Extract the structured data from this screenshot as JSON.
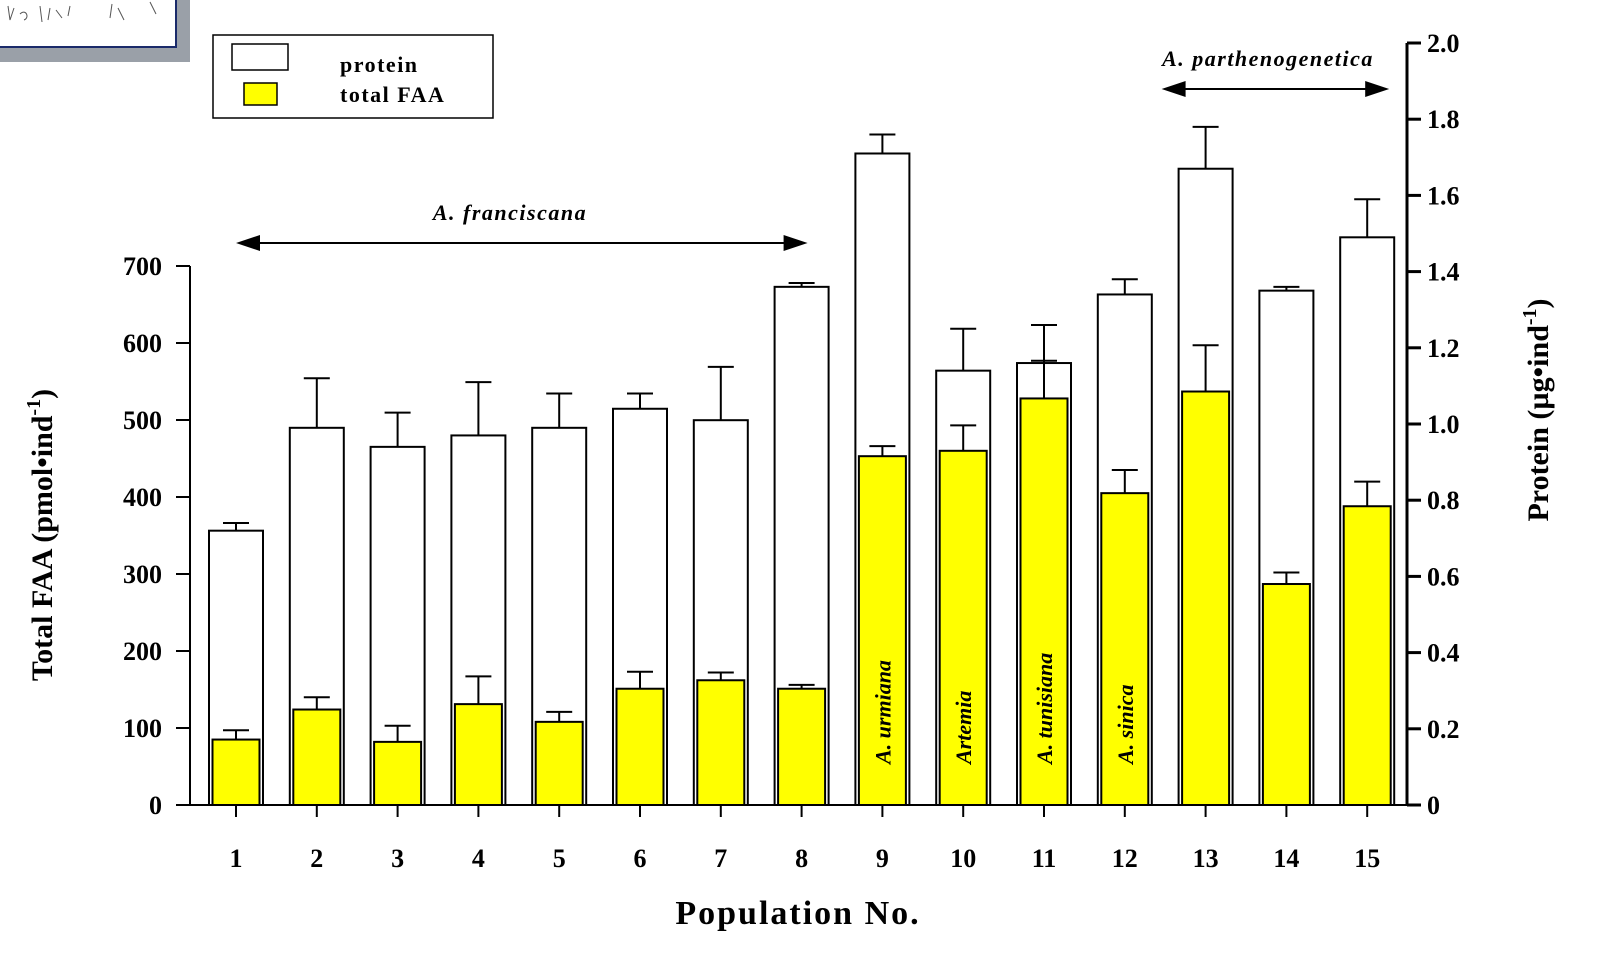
{
  "chart_data": {
    "type": "bar",
    "categories": [
      "1",
      "2",
      "3",
      "4",
      "5",
      "6",
      "7",
      "8",
      "9",
      "10",
      "11",
      "12",
      "13",
      "14",
      "15"
    ],
    "xlabel": "Population No.",
    "ylabel_left": "Total FAA (pmol•ind",
    "ylabel_left_exp": "-1",
    "ylabel_right": "Protein (µg•ind",
    "ylabel_right_exp": "-1",
    "ylim_left": [
      0,
      700
    ],
    "ylim_right": [
      0,
      2.0
    ],
    "left_ticks": [
      "0",
      "100",
      "200",
      "300",
      "400",
      "500",
      "600",
      "700"
    ],
    "right_ticks": [
      "0",
      "0.2",
      "0.4",
      "0.6",
      "0.8",
      "1.0",
      "1.2",
      "1.4",
      "1.6",
      "1.8",
      "2.0"
    ],
    "legend": {
      "position": "top-left",
      "items": [
        {
          "label": "protein",
          "color": "#ffffff"
        },
        {
          "label": "total FAA",
          "color": "#ffff00"
        }
      ]
    },
    "series": [
      {
        "name": "protein",
        "axis": "right",
        "color": "#ffffff",
        "values": [
          0.72,
          0.99,
          0.94,
          0.97,
          0.99,
          1.04,
          1.01,
          1.36,
          1.71,
          1.14,
          1.16,
          1.34,
          1.67,
          1.35,
          1.49
        ],
        "errors": [
          0.02,
          0.13,
          0.09,
          0.14,
          0.09,
          0.04,
          0.14,
          0.01,
          0.05,
          0.11,
          0.1,
          0.04,
          0.11,
          0.01,
          0.1
        ]
      },
      {
        "name": "total FAA",
        "axis": "left",
        "color": "#ffff00",
        "values": [
          85,
          124,
          82,
          131,
          108,
          151,
          162,
          151,
          453,
          460,
          528,
          405,
          537,
          287,
          388
        ],
        "errors": [
          12,
          16,
          21,
          36,
          13,
          22,
          10,
          5,
          13,
          33,
          49,
          30,
          60,
          15,
          32
        ]
      }
    ],
    "annotations": [
      {
        "text": "A. franciscana",
        "span": [
          "1",
          "8"
        ]
      },
      {
        "text": "A. parthenogenetica",
        "span": [
          "13",
          "15"
        ]
      }
    ],
    "bar_labels": [
      {
        "category": "9",
        "text": "A. urmiana"
      },
      {
        "category": "10",
        "text": "Artemia"
      },
      {
        "category": "11",
        "text": "A. tunisiana"
      },
      {
        "category": "12",
        "text": "A. sinica"
      }
    ]
  },
  "colors": {
    "faa_fill": "#ffff00",
    "protein_fill": "#ffffff",
    "axis": "#000000",
    "thumb_frame": "#8a8f99"
  }
}
